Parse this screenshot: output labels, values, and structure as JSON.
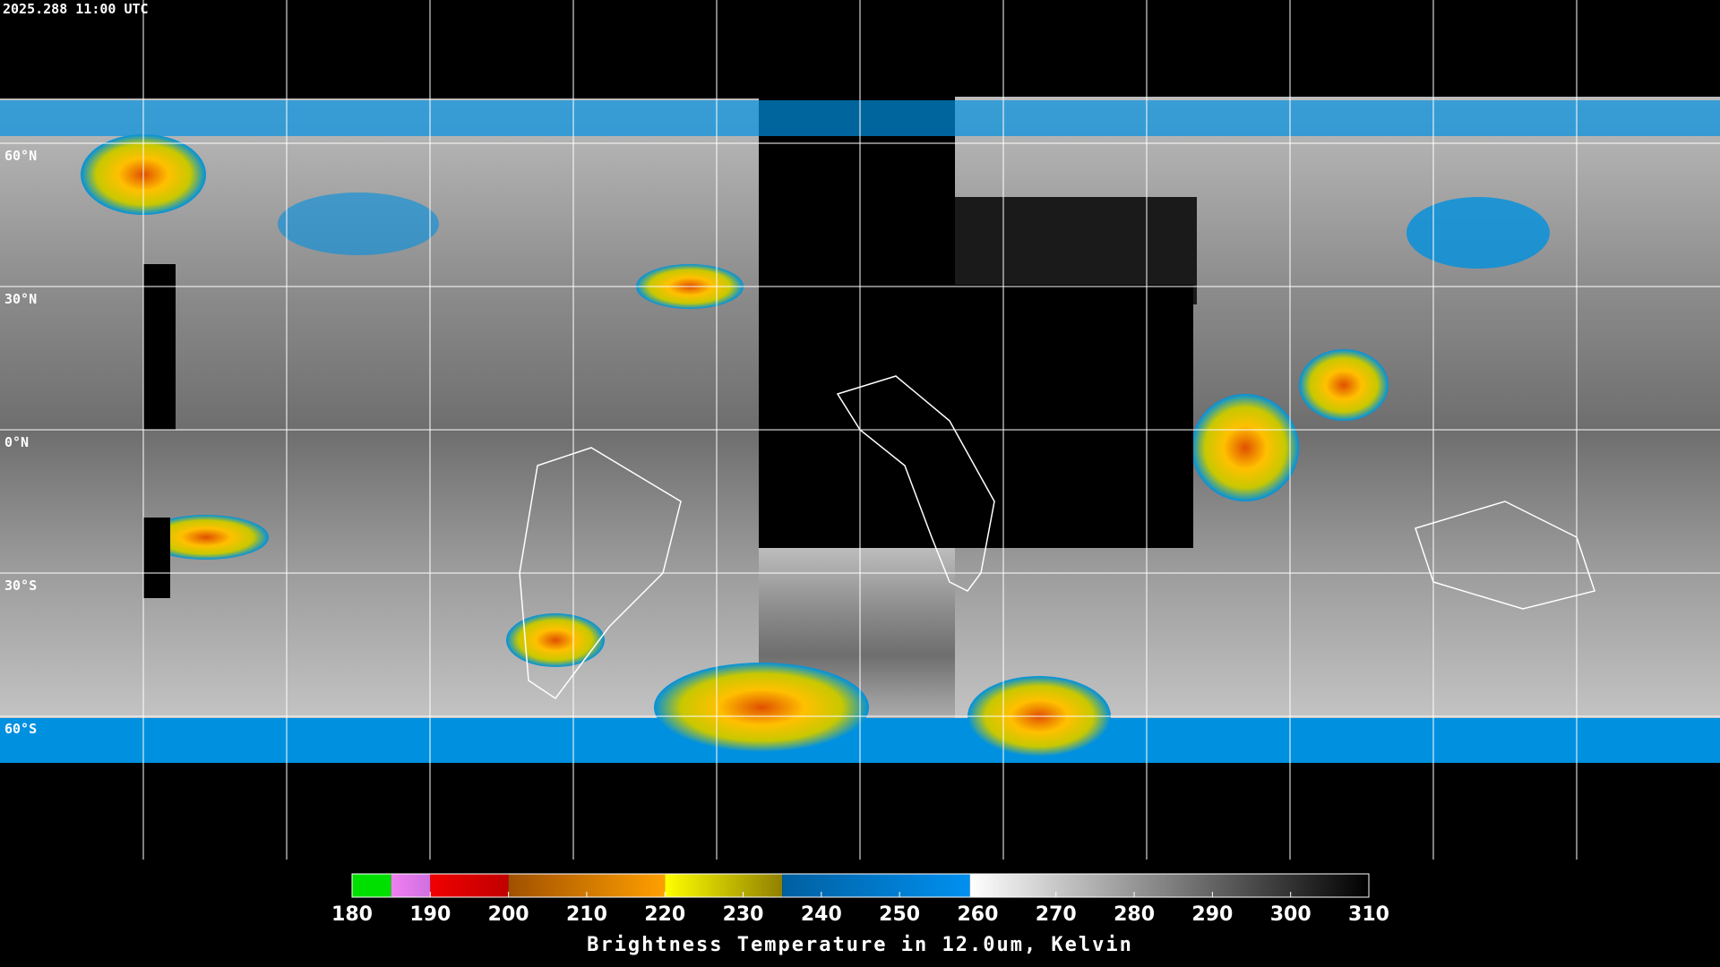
{
  "timestamp": "2025.288 11:00 UTC",
  "latitude_labels": [
    {
      "label": "60°N",
      "lat": 60
    },
    {
      "label": "30°N",
      "lat": 30
    },
    {
      "label": "0°N",
      "lat": 0
    },
    {
      "label": "30°S",
      "lat": -30
    },
    {
      "label": "60°S",
      "lat": -60
    }
  ],
  "colorbar": {
    "title": "Brightness Temperature in 12.0um, Kelvin",
    "range": [
      180,
      310
    ],
    "ticks": [
      180,
      190,
      200,
      210,
      220,
      230,
      240,
      250,
      260,
      270,
      280,
      290,
      300,
      310
    ],
    "segments": [
      {
        "from": 180,
        "to": 185,
        "colors": [
          "#00e000",
          "#00e000"
        ]
      },
      {
        "from": 185,
        "to": 190,
        "colors": [
          "#f080f0",
          "#d070e0"
        ]
      },
      {
        "from": 190,
        "to": 200,
        "colors": [
          "#f00000",
          "#c00000"
        ]
      },
      {
        "from": 200,
        "to": 220,
        "colors": [
          "#a05000",
          "#ffa000"
        ]
      },
      {
        "from": 220,
        "to": 235,
        "colors": [
          "#ffff00",
          "#908000"
        ]
      },
      {
        "from": 235,
        "to": 259,
        "colors": [
          "#0060a0",
          "#0090f0"
        ]
      },
      {
        "from": 259,
        "to": 310,
        "colors": [
          "#ffffff",
          "#000000"
        ]
      }
    ]
  }
}
